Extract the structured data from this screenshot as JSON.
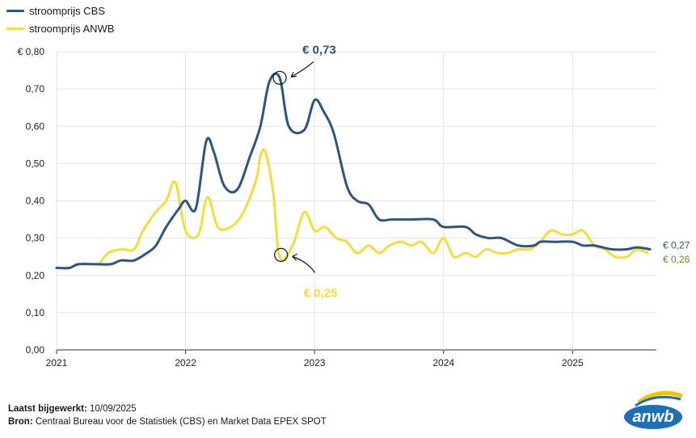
{
  "legend": [
    {
      "label": "stroomprijs CBS",
      "color": "#2b5582"
    },
    {
      "label": "stroomprijs ANWB",
      "color": "#f5dc3c"
    }
  ],
  "chart_data": {
    "type": "line",
    "title": "",
    "xlabel": "",
    "ylabel": "",
    "x_ticks": [
      "2021",
      "2022",
      "2023",
      "2024",
      "2025"
    ],
    "xlim": [
      2021.0,
      2025.65
    ],
    "y_ticks": [
      "€ 0,80",
      "0,70",
      "0,60",
      "0,50",
      "0,40",
      "0,30",
      "0,20",
      "0,10",
      "0,00"
    ],
    "ylim": [
      0,
      0.8
    ],
    "grid": "vertical and horizontal",
    "series": [
      {
        "name": "stroomprijs CBS",
        "color": "#2b5582",
        "points": [
          [
            2021.0,
            0.22
          ],
          [
            2021.1,
            0.22
          ],
          [
            2021.17,
            0.23
          ],
          [
            2021.3,
            0.23
          ],
          [
            2021.42,
            0.23
          ],
          [
            2021.5,
            0.24
          ],
          [
            2021.6,
            0.24
          ],
          [
            2021.7,
            0.26
          ],
          [
            2021.77,
            0.28
          ],
          [
            2021.85,
            0.33
          ],
          [
            2021.95,
            0.38
          ],
          [
            2022.0,
            0.4
          ],
          [
            2022.08,
            0.38
          ],
          [
            2022.16,
            0.56
          ],
          [
            2022.22,
            0.53
          ],
          [
            2022.3,
            0.44
          ],
          [
            2022.4,
            0.43
          ],
          [
            2022.5,
            0.52
          ],
          [
            2022.58,
            0.6
          ],
          [
            2022.65,
            0.72
          ],
          [
            2022.73,
            0.73
          ],
          [
            2022.8,
            0.6
          ],
          [
            2022.92,
            0.59
          ],
          [
            2023.0,
            0.67
          ],
          [
            2023.07,
            0.64
          ],
          [
            2023.15,
            0.58
          ],
          [
            2023.25,
            0.44
          ],
          [
            2023.33,
            0.4
          ],
          [
            2023.42,
            0.39
          ],
          [
            2023.5,
            0.35
          ],
          [
            2023.6,
            0.35
          ],
          [
            2023.75,
            0.35
          ],
          [
            2023.92,
            0.35
          ],
          [
            2024.0,
            0.33
          ],
          [
            2024.17,
            0.33
          ],
          [
            2024.25,
            0.31
          ],
          [
            2024.35,
            0.3
          ],
          [
            2024.45,
            0.3
          ],
          [
            2024.58,
            0.28
          ],
          [
            2024.7,
            0.28
          ],
          [
            2024.75,
            0.29
          ],
          [
            2024.85,
            0.29
          ],
          [
            2025.0,
            0.29
          ],
          [
            2025.08,
            0.28
          ],
          [
            2025.17,
            0.28
          ],
          [
            2025.3,
            0.27
          ],
          [
            2025.42,
            0.27
          ],
          [
            2025.5,
            0.275
          ],
          [
            2025.6,
            0.27
          ]
        ],
        "end_label": "€ 0,27",
        "annotation": {
          "x": 2022.73,
          "y": 0.73,
          "label": "€ 0,73"
        }
      },
      {
        "name": "stroomprijs ANWB",
        "color": "#f5dc3c",
        "points": [
          [
            2021.33,
            0.23
          ],
          [
            2021.4,
            0.26
          ],
          [
            2021.5,
            0.27
          ],
          [
            2021.6,
            0.27
          ],
          [
            2021.67,
            0.32
          ],
          [
            2021.77,
            0.37
          ],
          [
            2021.85,
            0.4
          ],
          [
            2021.92,
            0.45
          ],
          [
            2022.0,
            0.32
          ],
          [
            2022.1,
            0.31
          ],
          [
            2022.17,
            0.41
          ],
          [
            2022.25,
            0.33
          ],
          [
            2022.35,
            0.33
          ],
          [
            2022.45,
            0.37
          ],
          [
            2022.55,
            0.46
          ],
          [
            2022.58,
            0.52
          ],
          [
            2022.62,
            0.53
          ],
          [
            2022.68,
            0.42
          ],
          [
            2022.73,
            0.25
          ],
          [
            2022.83,
            0.28
          ],
          [
            2022.92,
            0.37
          ],
          [
            2023.0,
            0.32
          ],
          [
            2023.08,
            0.33
          ],
          [
            2023.17,
            0.3
          ],
          [
            2023.25,
            0.29
          ],
          [
            2023.33,
            0.26
          ],
          [
            2023.42,
            0.28
          ],
          [
            2023.5,
            0.26
          ],
          [
            2023.58,
            0.28
          ],
          [
            2023.67,
            0.29
          ],
          [
            2023.75,
            0.28
          ],
          [
            2023.83,
            0.29
          ],
          [
            2023.92,
            0.26
          ],
          [
            2024.0,
            0.3
          ],
          [
            2024.08,
            0.25
          ],
          [
            2024.17,
            0.26
          ],
          [
            2024.25,
            0.25
          ],
          [
            2024.33,
            0.27
          ],
          [
            2024.42,
            0.26
          ],
          [
            2024.5,
            0.26
          ],
          [
            2024.58,
            0.27
          ],
          [
            2024.67,
            0.27
          ],
          [
            2024.75,
            0.29
          ],
          [
            2024.83,
            0.32
          ],
          [
            2024.92,
            0.31
          ],
          [
            2025.0,
            0.31
          ],
          [
            2025.08,
            0.32
          ],
          [
            2025.17,
            0.28
          ],
          [
            2025.25,
            0.27
          ],
          [
            2025.33,
            0.25
          ],
          [
            2025.42,
            0.25
          ],
          [
            2025.5,
            0.27
          ],
          [
            2025.58,
            0.26
          ]
        ],
        "end_label": "€ 0,26",
        "annotation": {
          "x": 2022.74,
          "y": 0.255,
          "label": "€ 0,25"
        }
      }
    ]
  },
  "footer": {
    "updated_label": "Laatst bijgewerkt:",
    "updated_value": "10/09/2025",
    "source_label": "Bron:",
    "source_value": "Centraal Bureau voor de Statistiek (CBS) en Market Data EPEX SPOT"
  },
  "logo": {
    "text": "anwb"
  }
}
